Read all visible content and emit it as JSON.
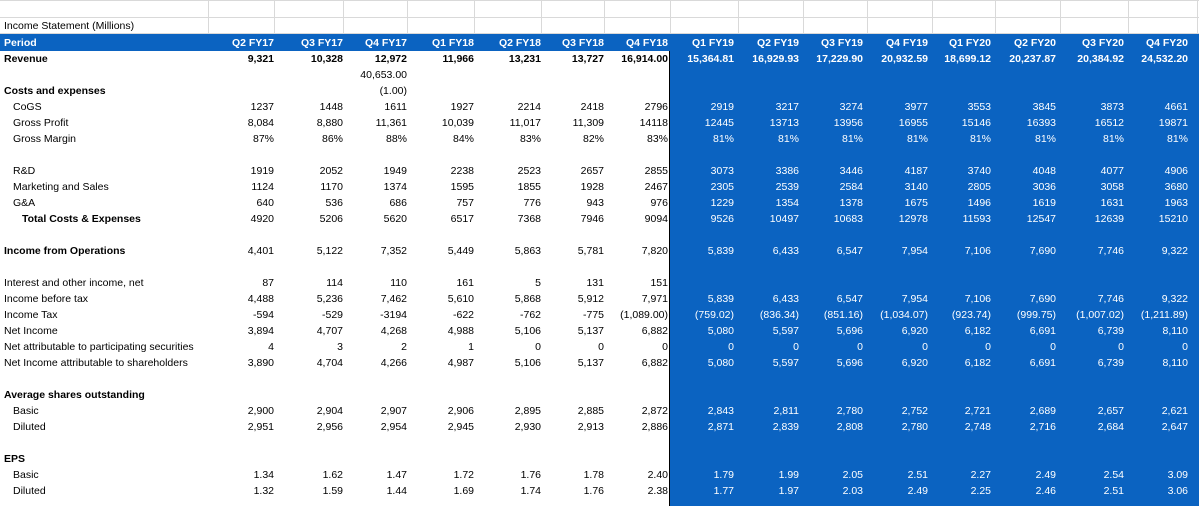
{
  "title": "Income Statement (Millions)",
  "period_label": "Period",
  "periods": [
    "Q2 FY17",
    "Q3 FY17",
    "Q4 FY17",
    "Q1 FY18",
    "Q2 FY18",
    "Q3 FY18",
    "Q4 FY18",
    "Q1 FY19",
    "Q2 FY19",
    "Q3 FY19",
    "Q4 FY19",
    "Q1 FY20",
    "Q2 FY20",
    "Q3 FY20",
    "Q4 FY20"
  ],
  "highlight_color": "#0b63c1",
  "rows": [
    {
      "label": "Revenue",
      "style": "bold",
      "indent": 0,
      "values": [
        "9,321",
        "10,328",
        "12,972",
        "11,966",
        "13,231",
        "13,727",
        "16,914.00",
        "15,364.81",
        "16,929.93",
        "17,229.90",
        "20,932.59",
        "18,699.12",
        "20,237.87",
        "20,384.92",
        "24,532.20"
      ]
    },
    {
      "label": "",
      "style": "",
      "indent": 0,
      "values": [
        "",
        "",
        "40,653.00",
        "",
        "",
        "",
        "",
        "",
        "",
        "",
        "",
        "",
        "",
        "",
        ""
      ]
    },
    {
      "label": "Costs and expenses",
      "style": "bold",
      "indent": 0,
      "values": [
        "",
        "",
        "(1.00)",
        "",
        "",
        "",
        "",
        "",
        "",
        "",
        "",
        "",
        "",
        "",
        ""
      ]
    },
    {
      "label": "CoGS",
      "style": "",
      "indent": 1,
      "values": [
        "1237",
        "1448",
        "1611",
        "1927",
        "2214",
        "2418",
        "2796",
        "2919",
        "3217",
        "3274",
        "3977",
        "3553",
        "3845",
        "3873",
        "4661"
      ]
    },
    {
      "label": "Gross Profit",
      "style": "",
      "indent": 1,
      "values": [
        "8,084",
        "8,880",
        "11,361",
        "10,039",
        "11,017",
        "11,309",
        "14118",
        "12445",
        "13713",
        "13956",
        "16955",
        "15146",
        "16393",
        "16512",
        "19871"
      ]
    },
    {
      "label": "Gross Margin",
      "style": "",
      "indent": 1,
      "values": [
        "87%",
        "86%",
        "88%",
        "84%",
        "83%",
        "82%",
        "83%",
        "81%",
        "81%",
        "81%",
        "81%",
        "81%",
        "81%",
        "81%",
        "81%"
      ]
    },
    {
      "label": "",
      "style": "",
      "indent": 0,
      "values": [
        "",
        "",
        "",
        "",
        "",
        "",
        "",
        "",
        "",
        "",
        "",
        "",
        "",
        "",
        ""
      ]
    },
    {
      "label": "R&D",
      "style": "",
      "indent": 1,
      "values": [
        "1919",
        "2052",
        "1949",
        "2238",
        "2523",
        "2657",
        "2855",
        "3073",
        "3386",
        "3446",
        "4187",
        "3740",
        "4048",
        "4077",
        "4906"
      ]
    },
    {
      "label": "Marketing and Sales",
      "style": "",
      "indent": 1,
      "values": [
        "1124",
        "1170",
        "1374",
        "1595",
        "1855",
        "1928",
        "2467",
        "2305",
        "2539",
        "2584",
        "3140",
        "2805",
        "3036",
        "3058",
        "3680"
      ]
    },
    {
      "label": "G&A",
      "style": "",
      "indent": 1,
      "values": [
        "640",
        "536",
        "686",
        "757",
        "776",
        "943",
        "976",
        "1229",
        "1354",
        "1378",
        "1675",
        "1496",
        "1619",
        "1631",
        "1963"
      ]
    },
    {
      "label": "Total Costs & Expenses",
      "style": "bold",
      "indent": 2,
      "values": [
        "4920",
        "5206",
        "5620",
        "6517",
        "7368",
        "7946",
        "9094",
        "9526",
        "10497",
        "10683",
        "12978",
        "11593",
        "12547",
        "12639",
        "15210"
      ]
    },
    {
      "label": "",
      "style": "",
      "indent": 0,
      "values": [
        "",
        "",
        "",
        "",
        "",
        "",
        "",
        "",
        "",
        "",
        "",
        "",
        "",
        "",
        ""
      ]
    },
    {
      "label": "Income from Operations",
      "style": "bold",
      "indent": 0,
      "values": [
        "4,401",
        "5,122",
        "7,352",
        "5,449",
        "5,863",
        "5,781",
        "7,820",
        "5,839",
        "6,433",
        "6,547",
        "7,954",
        "7,106",
        "7,690",
        "7,746",
        "9,322"
      ]
    },
    {
      "label": "",
      "style": "",
      "indent": 0,
      "values": [
        "",
        "",
        "",
        "",
        "",
        "",
        "",
        "",
        "",
        "",
        "",
        "",
        "",
        "",
        ""
      ]
    },
    {
      "label": "Interest and other income, net",
      "style": "",
      "indent": 0,
      "values": [
        "87",
        "114",
        "110",
        "161",
        "5",
        "131",
        "151",
        "",
        "",
        "",
        "",
        "",
        "",
        "",
        ""
      ]
    },
    {
      "label": "Income before tax",
      "style": "",
      "indent": 0,
      "values": [
        "4,488",
        "5,236",
        "7,462",
        "5,610",
        "5,868",
        "5,912",
        "7,971",
        "5,839",
        "6,433",
        "6,547",
        "7,954",
        "7,106",
        "7,690",
        "7,746",
        "9,322"
      ]
    },
    {
      "label": "Income Tax",
      "style": "",
      "indent": 0,
      "values": [
        "-594",
        "-529",
        "-3194",
        "-622",
        "-762",
        "-775",
        "(1,089.00)",
        "(759.02)",
        "(836.34)",
        "(851.16)",
        "(1,034.07)",
        "(923.74)",
        "(999.75)",
        "(1,007.02)",
        "(1,211.89)"
      ]
    },
    {
      "label": "Net Income",
      "style": "",
      "indent": 0,
      "values": [
        "3,894",
        "4,707",
        "4,268",
        "4,988",
        "5,106",
        "5,137",
        "6,882",
        "5,080",
        "5,597",
        "5,696",
        "6,920",
        "6,182",
        "6,691",
        "6,739",
        "8,110"
      ]
    },
    {
      "label": "Net attributable to participating securities",
      "style": "",
      "indent": 0,
      "values": [
        "4",
        "3",
        "2",
        "1",
        "0",
        "0",
        "0",
        "0",
        "0",
        "0",
        "0",
        "0",
        "0",
        "0",
        "0"
      ]
    },
    {
      "label": "Net Income attributable to shareholders",
      "style": "",
      "indent": 0,
      "values": [
        "3,890",
        "4,704",
        "4,266",
        "4,987",
        "5,106",
        "5,137",
        "6,882",
        "5,080",
        "5,597",
        "5,696",
        "6,920",
        "6,182",
        "6,691",
        "6,739",
        "8,110"
      ]
    },
    {
      "label": "",
      "style": "",
      "indent": 0,
      "values": [
        "",
        "",
        "",
        "",
        "",
        "",
        "",
        "",
        "",
        "",
        "",
        "",
        "",
        "",
        ""
      ]
    },
    {
      "label": "Average shares outstanding",
      "style": "bold",
      "indent": 0,
      "values": [
        "",
        "",
        "",
        "",
        "",
        "",
        "",
        "",
        "",
        "",
        "",
        "",
        "",
        "",
        ""
      ]
    },
    {
      "label": "Basic",
      "style": "",
      "indent": 1,
      "values": [
        "2,900",
        "2,904",
        "2,907",
        "2,906",
        "2,895",
        "2,885",
        "2,872",
        "2,843",
        "2,811",
        "2,780",
        "2,752",
        "2,721",
        "2,689",
        "2,657",
        "2,621"
      ]
    },
    {
      "label": "Diluted",
      "style": "",
      "indent": 1,
      "values": [
        "2,951",
        "2,956",
        "2,954",
        "2,945",
        "2,930",
        "2,913",
        "2,886",
        "2,871",
        "2,839",
        "2,808",
        "2,780",
        "2,748",
        "2,716",
        "2,684",
        "2,647"
      ]
    },
    {
      "label": "",
      "style": "",
      "indent": 0,
      "values": [
        "",
        "",
        "",
        "",
        "",
        "",
        "",
        "",
        "",
        "",
        "",
        "",
        "",
        "",
        ""
      ]
    },
    {
      "label": "EPS",
      "style": "bold",
      "indent": 0,
      "values": [
        "",
        "",
        "",
        "",
        "",
        "",
        "",
        "",
        "",
        "",
        "",
        "",
        "",
        "",
        ""
      ]
    },
    {
      "label": "Basic",
      "style": "",
      "indent": 1,
      "values": [
        "1.34",
        "1.62",
        "1.47",
        "1.72",
        "1.76",
        "1.78",
        "2.40",
        "1.79",
        "1.99",
        "2.05",
        "2.51",
        "2.27",
        "2.49",
        "2.54",
        "3.09"
      ]
    },
    {
      "label": "Diluted",
      "style": "",
      "indent": 1,
      "values": [
        "1.32",
        "1.59",
        "1.44",
        "1.69",
        "1.74",
        "1.76",
        "2.38",
        "1.77",
        "1.97",
        "2.03",
        "2.49",
        "2.25",
        "2.46",
        "2.51",
        "3.06"
      ]
    }
  ]
}
